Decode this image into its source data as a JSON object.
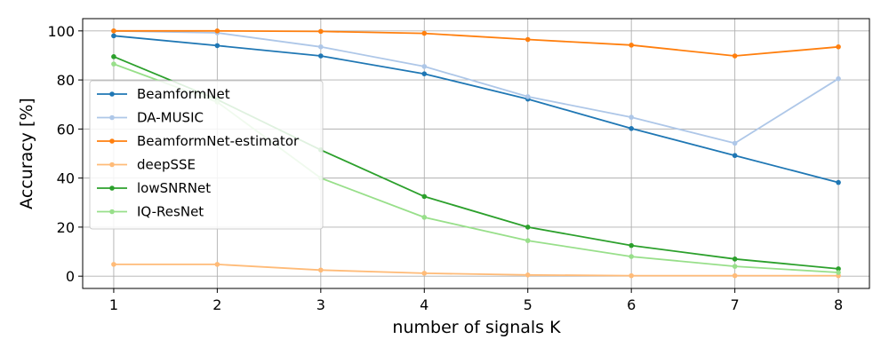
{
  "chart_data": {
    "type": "line",
    "title": "",
    "xlabel": "number of signals K",
    "ylabel": "Accuracy [%]",
    "x": [
      1,
      2,
      3,
      4,
      5,
      6,
      7,
      8
    ],
    "x_ticks": [
      "1",
      "2",
      "3",
      "4",
      "5",
      "6",
      "7",
      "8"
    ],
    "y_ticks": [
      "0",
      "20",
      "40",
      "60",
      "80",
      "100"
    ],
    "xlim": [
      0.7,
      8.3
    ],
    "ylim": [
      -5,
      105
    ],
    "grid": true,
    "legend_position": "center-left",
    "series": [
      {
        "name": "BeamformNet",
        "color": "#1f77b4",
        "values": [
          98.0,
          94.0,
          89.8,
          82.5,
          72.2,
          60.2,
          49.2,
          38.2
        ]
      },
      {
        "name": "DA-MUSIC",
        "color": "#aec7e8",
        "values": [
          100.0,
          99.2,
          93.5,
          85.5,
          73.2,
          64.8,
          54.2,
          80.5
        ]
      },
      {
        "name": "BeamformNet-estimator",
        "color": "#ff7f0e",
        "values": [
          100.0,
          100.0,
          99.8,
          99.0,
          96.5,
          94.2,
          89.8,
          93.5
        ]
      },
      {
        "name": "deepSSE",
        "color": "#ffbb78",
        "values": [
          4.8,
          4.8,
          2.5,
          1.2,
          0.5,
          0.2,
          0.2,
          0.2
        ]
      },
      {
        "name": "lowSNRNet",
        "color": "#2ca02c",
        "values": [
          89.5,
          72.0,
          51.5,
          32.5,
          20.0,
          12.5,
          7.0,
          3.0
        ]
      },
      {
        "name": "IQ-ResNet",
        "color": "#98df8a",
        "values": [
          86.5,
          71.0,
          40.0,
          24.0,
          14.5,
          8.0,
          4.0,
          1.5
        ]
      }
    ]
  }
}
